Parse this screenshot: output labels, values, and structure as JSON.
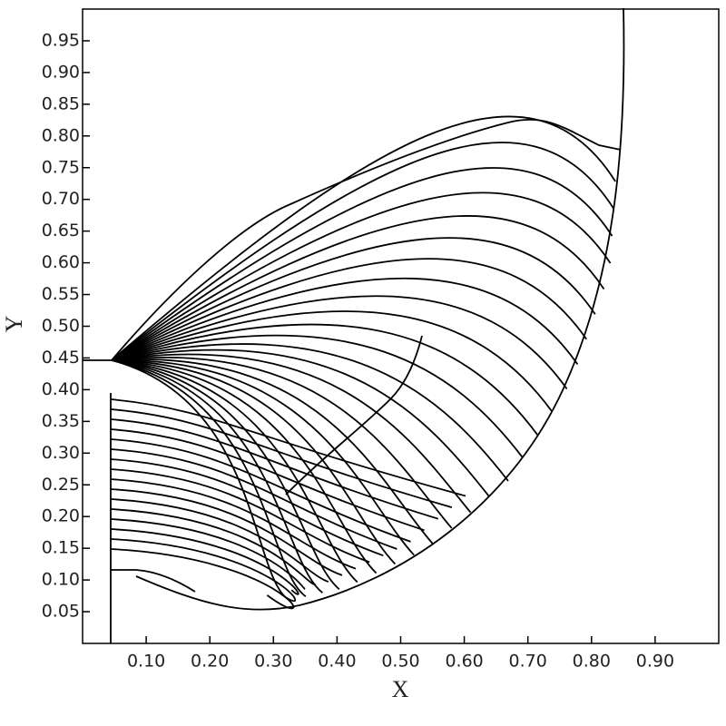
{
  "chart_data": {
    "type": "contour",
    "xlabel": "X",
    "ylabel": "Y",
    "xlim": [
      0,
      1
    ],
    "ylim": [
      0,
      1
    ],
    "xticks": [
      {
        "value": 0.1,
        "label": "0.10"
      },
      {
        "value": 0.2,
        "label": "0.20"
      },
      {
        "value": 0.3,
        "label": "0.30"
      },
      {
        "value": 0.4,
        "label": "0.40"
      },
      {
        "value": 0.5,
        "label": "0.50"
      },
      {
        "value": 0.6,
        "label": "0.60"
      },
      {
        "value": 0.7,
        "label": "0.70"
      },
      {
        "value": 0.8,
        "label": "0.80"
      },
      {
        "value": 0.9,
        "label": "0.90"
      }
    ],
    "yticks": [
      0.05,
      {
        "value": 0.1,
        "label": "0.10"
      },
      0.15,
      {
        "value": 0.2,
        "label": "0.20"
      },
      0.25,
      {
        "value": 0.3,
        "label": "0.30"
      },
      0.35,
      {
        "value": 0.4,
        "label": "0.40"
      },
      0.45,
      {
        "value": 0.5,
        "label": "0.50"
      },
      0.55,
      {
        "value": 0.6,
        "label": "0.60"
      },
      0.65,
      {
        "value": 0.7,
        "label": "0.70"
      },
      0.75,
      {
        "value": 0.8,
        "label": "0.80"
      },
      0.85,
      {
        "value": 0.9,
        "label": "0.90"
      },
      0.95
    ]
  }
}
